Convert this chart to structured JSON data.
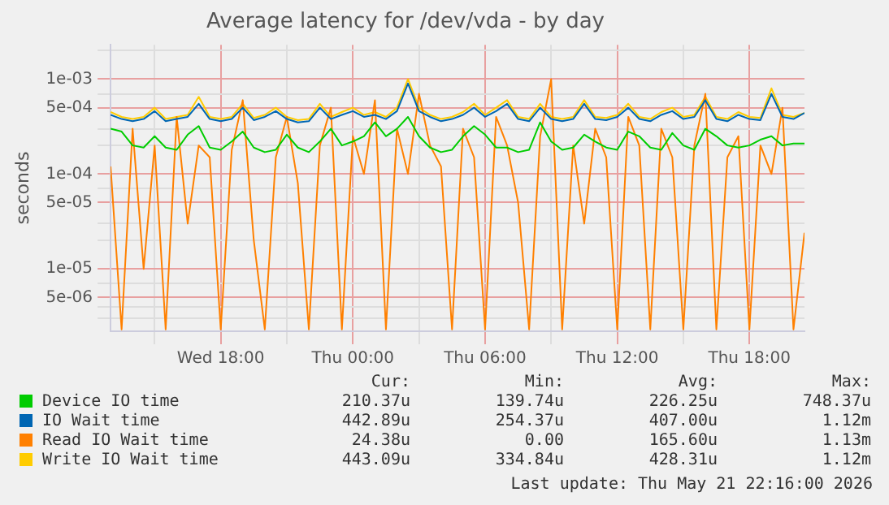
{
  "chart_data": {
    "type": "line",
    "title": "Average latency for /dev/vda - by day",
    "ylabel": "seconds",
    "log": "y",
    "grid": true,
    "legend": "bottom",
    "marker": "none",
    "line_style": "solid",
    "xlim": [
      "2026-05-20T13:00",
      "2026-05-21T20:30"
    ],
    "xticks": [
      {
        "value": "2026-05-20T15:00",
        "label": null
      },
      {
        "value": "2026-05-20T18:00",
        "label": "Wed 18:00"
      },
      {
        "value": "2026-05-20T21:00",
        "label": null
      },
      {
        "value": "2026-05-21T00:00",
        "label": "Thu 00:00"
      },
      {
        "value": "2026-05-21T03:00",
        "label": null
      },
      {
        "value": "2026-05-21T06:00",
        "label": "Thu 06:00"
      },
      {
        "value": "2026-05-21T09:00",
        "label": null
      },
      {
        "value": "2026-05-21T12:00",
        "label": "Thu 12:00"
      },
      {
        "value": "2026-05-21T15:00",
        "label": null
      },
      {
        "value": "2026-05-21T18:00",
        "label": "Thu 18:00"
      }
    ],
    "ylim": [
      2.2e-06,
      0.0023
    ],
    "yticks": [
      {
        "value": 3e-06,
        "label": null
      },
      {
        "value": 4e-06,
        "label": null
      },
      {
        "value": 5e-06,
        "label": "5e-06"
      },
      {
        "value": 7e-06,
        "label": null
      },
      {
        "value": 1e-05,
        "label": "1e-05"
      },
      {
        "value": 2e-05,
        "label": null
      },
      {
        "value": 3e-05,
        "label": null
      },
      {
        "value": 5e-05,
        "label": "5e-05"
      },
      {
        "value": 7e-05,
        "label": null
      },
      {
        "value": 0.0001,
        "label": "1e-04"
      },
      {
        "value": 0.0002,
        "label": null
      },
      {
        "value": 0.0003,
        "label": null
      },
      {
        "value": 0.0005,
        "label": "5e-04"
      },
      {
        "value": 0.0007,
        "label": null
      },
      {
        "value": 0.001,
        "label": "1e-03"
      },
      {
        "value": 0.002,
        "label": null
      }
    ],
    "x": [
      "2026-05-20T13:00",
      "2026-05-20T13:30",
      "2026-05-20T14:00",
      "2026-05-20T14:30",
      "2026-05-20T15:00",
      "2026-05-20T15:30",
      "2026-05-20T16:00",
      "2026-05-20T16:30",
      "2026-05-20T17:00",
      "2026-05-20T17:30",
      "2026-05-20T18:00",
      "2026-05-20T18:30",
      "2026-05-20T19:00",
      "2026-05-20T19:30",
      "2026-05-20T20:00",
      "2026-05-20T20:30",
      "2026-05-20T21:00",
      "2026-05-20T21:30",
      "2026-05-20T22:00",
      "2026-05-20T22:30",
      "2026-05-20T23:00",
      "2026-05-20T23:30",
      "2026-05-21T00:00",
      "2026-05-21T00:30",
      "2026-05-21T01:00",
      "2026-05-21T01:30",
      "2026-05-21T02:00",
      "2026-05-21T02:30",
      "2026-05-21T03:00",
      "2026-05-21T03:30",
      "2026-05-21T04:00",
      "2026-05-21T04:30",
      "2026-05-21T05:00",
      "2026-05-21T05:30",
      "2026-05-21T06:00",
      "2026-05-21T06:30",
      "2026-05-21T07:00",
      "2026-05-21T07:30",
      "2026-05-21T08:00",
      "2026-05-21T08:30",
      "2026-05-21T09:00",
      "2026-05-21T09:30",
      "2026-05-21T10:00",
      "2026-05-21T10:30",
      "2026-05-21T11:00",
      "2026-05-21T11:30",
      "2026-05-21T12:00",
      "2026-05-21T12:30",
      "2026-05-21T13:00",
      "2026-05-21T13:30",
      "2026-05-21T14:00",
      "2026-05-21T14:30",
      "2026-05-21T15:00",
      "2026-05-21T15:30",
      "2026-05-21T16:00",
      "2026-05-21T16:30",
      "2026-05-21T17:00",
      "2026-05-21T17:30",
      "2026-05-21T18:00",
      "2026-05-21T18:30",
      "2026-05-21T19:00",
      "2026-05-21T19:30",
      "2026-05-21T20:00",
      "2026-05-21T20:30"
    ],
    "series": [
      {
        "name": "Device IO time",
        "color": "#00cc00",
        "values": [
          0.0003,
          0.00028,
          0.0002,
          0.00019,
          0.00025,
          0.00019,
          0.00018,
          0.00026,
          0.00032,
          0.00019,
          0.00018,
          0.00022,
          0.00028,
          0.00019,
          0.00017,
          0.00018,
          0.00026,
          0.00019,
          0.00017,
          0.00022,
          0.0003,
          0.0002,
          0.00022,
          0.00025,
          0.00035,
          0.00025,
          0.0003,
          0.0004,
          0.00025,
          0.00019,
          0.00017,
          0.00018,
          0.00025,
          0.00032,
          0.00026,
          0.00019,
          0.00019,
          0.00017,
          0.00018,
          0.00035,
          0.00022,
          0.00018,
          0.00019,
          0.00026,
          0.00022,
          0.00019,
          0.00018,
          0.00028,
          0.00025,
          0.00019,
          0.00018,
          0.00027,
          0.0002,
          0.00018,
          0.0003,
          0.00025,
          0.0002,
          0.00019,
          0.0002,
          0.00023,
          0.00025,
          0.0002,
          0.00021,
          0.00021
        ]
      },
      {
        "name": "IO Wait time",
        "color": "#0066b3",
        "values": [
          0.00042,
          0.00038,
          0.00036,
          0.00038,
          0.00046,
          0.00036,
          0.00038,
          0.0004,
          0.00055,
          0.00038,
          0.00036,
          0.00038,
          0.0005,
          0.00037,
          0.0004,
          0.00046,
          0.00038,
          0.00035,
          0.00036,
          0.0005,
          0.00038,
          0.00042,
          0.00046,
          0.0004,
          0.00042,
          0.00038,
          0.00046,
          0.0009,
          0.00046,
          0.0004,
          0.00036,
          0.00038,
          0.00042,
          0.0005,
          0.0004,
          0.00046,
          0.00055,
          0.00038,
          0.00036,
          0.0005,
          0.00038,
          0.00036,
          0.00038,
          0.00055,
          0.00038,
          0.00037,
          0.0004,
          0.0005,
          0.00038,
          0.00036,
          0.00042,
          0.00046,
          0.00038,
          0.0004,
          0.0006,
          0.00038,
          0.00036,
          0.00042,
          0.00038,
          0.00037,
          0.0007,
          0.0004,
          0.00038,
          0.00044
        ]
      },
      {
        "name": "Read IO Wait time",
        "color": "#ff8000",
        "values": [
          0.00012,
          2.3e-06,
          0.0003,
          1e-05,
          0.0002,
          2.3e-06,
          0.0004,
          3e-05,
          0.0002,
          0.00015,
          2.3e-06,
          0.00018,
          0.0006,
          2e-05,
          2.3e-06,
          0.00015,
          0.0004,
          8e-05,
          2.3e-06,
          0.0002,
          0.0005,
          2.3e-06,
          0.00025,
          0.0001,
          0.0006,
          2.3e-06,
          0.0003,
          0.0001,
          0.0007,
          0.0002,
          0.00012,
          2.3e-06,
          0.0003,
          0.00015,
          2.3e-06,
          0.0004,
          0.0002,
          5e-05,
          2.3e-06,
          0.00025,
          0.001,
          2.3e-06,
          0.0002,
          3e-05,
          0.0003,
          0.00015,
          2.3e-06,
          0.0004,
          0.0002,
          2.3e-06,
          0.0003,
          0.00015,
          2.3e-06,
          0.0002,
          0.0007,
          2.3e-06,
          0.00015,
          0.00025,
          2.3e-06,
          0.0002,
          0.0001,
          0.0005,
          2.3e-06,
          2.4e-05
        ]
      },
      {
        "name": "Write IO Wait time",
        "color": "#ffcc00",
        "values": [
          0.00045,
          0.0004,
          0.00038,
          0.0004,
          0.0005,
          0.00038,
          0.0004,
          0.00042,
          0.00065,
          0.0004,
          0.00038,
          0.0004,
          0.00055,
          0.00039,
          0.00042,
          0.0005,
          0.0004,
          0.00037,
          0.00038,
          0.00055,
          0.0004,
          0.00045,
          0.0005,
          0.00042,
          0.00045,
          0.0004,
          0.0005,
          0.001,
          0.0005,
          0.00042,
          0.00038,
          0.0004,
          0.00045,
          0.00055,
          0.00042,
          0.0005,
          0.0006,
          0.0004,
          0.00038,
          0.00055,
          0.0004,
          0.00038,
          0.0004,
          0.0006,
          0.0004,
          0.00039,
          0.00042,
          0.00055,
          0.0004,
          0.00038,
          0.00045,
          0.0005,
          0.0004,
          0.00042,
          0.00065,
          0.0004,
          0.00038,
          0.00045,
          0.0004,
          0.00039,
          0.0008,
          0.00042,
          0.0004,
          0.00044
        ]
      }
    ],
    "annotations": [
      "Cur:",
      "Min:",
      "Avg:",
      "Max:",
      "210.37u",
      "139.74u",
      "226.25u",
      "748.37u",
      "442.89u",
      "254.37u",
      "407.00u",
      "1.12m",
      "24.38u",
      "0.00",
      "165.60u",
      "1.13m",
      "443.09u",
      "334.84u",
      "428.31u",
      "1.12m",
      "Last update: Thu May 21 22:16:00 2026"
    ]
  }
}
